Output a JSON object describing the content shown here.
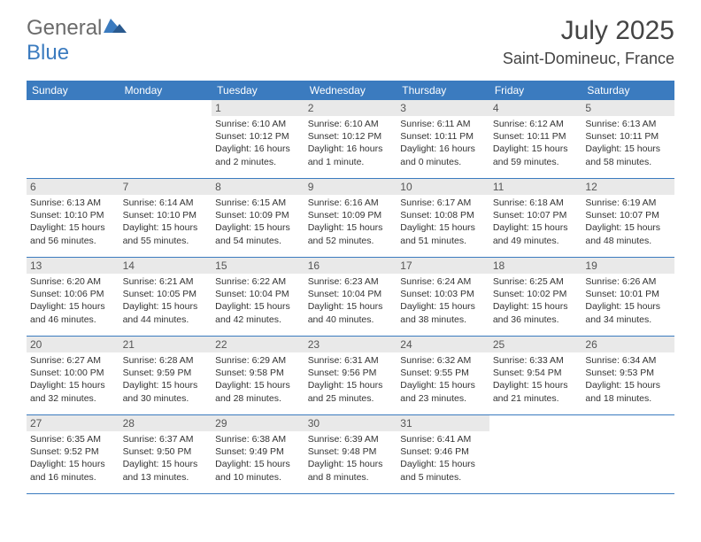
{
  "logo": {
    "text1": "General",
    "text2": "Blue"
  },
  "title": "July 2025",
  "location": "Saint-Domineuc, France",
  "dayNames": [
    "Sunday",
    "Monday",
    "Tuesday",
    "Wednesday",
    "Thursday",
    "Friday",
    "Saturday"
  ],
  "colors": {
    "headerBlue": "#3b7bbf",
    "logoGray": "#6b6b6b",
    "background": "#ffffff",
    "dayNumBg": "#e9e9e9",
    "textDark": "#444444",
    "infoText": "#333333"
  },
  "calendar": {
    "startOffset": 2,
    "days": [
      {
        "n": 1,
        "sr": "6:10 AM",
        "ss": "10:12 PM",
        "dl": "16 hours and 2 minutes."
      },
      {
        "n": 2,
        "sr": "6:10 AM",
        "ss": "10:12 PM",
        "dl": "16 hours and 1 minute."
      },
      {
        "n": 3,
        "sr": "6:11 AM",
        "ss": "10:11 PM",
        "dl": "16 hours and 0 minutes."
      },
      {
        "n": 4,
        "sr": "6:12 AM",
        "ss": "10:11 PM",
        "dl": "15 hours and 59 minutes."
      },
      {
        "n": 5,
        "sr": "6:13 AM",
        "ss": "10:11 PM",
        "dl": "15 hours and 58 minutes."
      },
      {
        "n": 6,
        "sr": "6:13 AM",
        "ss": "10:10 PM",
        "dl": "15 hours and 56 minutes."
      },
      {
        "n": 7,
        "sr": "6:14 AM",
        "ss": "10:10 PM",
        "dl": "15 hours and 55 minutes."
      },
      {
        "n": 8,
        "sr": "6:15 AM",
        "ss": "10:09 PM",
        "dl": "15 hours and 54 minutes."
      },
      {
        "n": 9,
        "sr": "6:16 AM",
        "ss": "10:09 PM",
        "dl": "15 hours and 52 minutes."
      },
      {
        "n": 10,
        "sr": "6:17 AM",
        "ss": "10:08 PM",
        "dl": "15 hours and 51 minutes."
      },
      {
        "n": 11,
        "sr": "6:18 AM",
        "ss": "10:07 PM",
        "dl": "15 hours and 49 minutes."
      },
      {
        "n": 12,
        "sr": "6:19 AM",
        "ss": "10:07 PM",
        "dl": "15 hours and 48 minutes."
      },
      {
        "n": 13,
        "sr": "6:20 AM",
        "ss": "10:06 PM",
        "dl": "15 hours and 46 minutes."
      },
      {
        "n": 14,
        "sr": "6:21 AM",
        "ss": "10:05 PM",
        "dl": "15 hours and 44 minutes."
      },
      {
        "n": 15,
        "sr": "6:22 AM",
        "ss": "10:04 PM",
        "dl": "15 hours and 42 minutes."
      },
      {
        "n": 16,
        "sr": "6:23 AM",
        "ss": "10:04 PM",
        "dl": "15 hours and 40 minutes."
      },
      {
        "n": 17,
        "sr": "6:24 AM",
        "ss": "10:03 PM",
        "dl": "15 hours and 38 minutes."
      },
      {
        "n": 18,
        "sr": "6:25 AM",
        "ss": "10:02 PM",
        "dl": "15 hours and 36 minutes."
      },
      {
        "n": 19,
        "sr": "6:26 AM",
        "ss": "10:01 PM",
        "dl": "15 hours and 34 minutes."
      },
      {
        "n": 20,
        "sr": "6:27 AM",
        "ss": "10:00 PM",
        "dl": "15 hours and 32 minutes."
      },
      {
        "n": 21,
        "sr": "6:28 AM",
        "ss": "9:59 PM",
        "dl": "15 hours and 30 minutes."
      },
      {
        "n": 22,
        "sr": "6:29 AM",
        "ss": "9:58 PM",
        "dl": "15 hours and 28 minutes."
      },
      {
        "n": 23,
        "sr": "6:31 AM",
        "ss": "9:56 PM",
        "dl": "15 hours and 25 minutes."
      },
      {
        "n": 24,
        "sr": "6:32 AM",
        "ss": "9:55 PM",
        "dl": "15 hours and 23 minutes."
      },
      {
        "n": 25,
        "sr": "6:33 AM",
        "ss": "9:54 PM",
        "dl": "15 hours and 21 minutes."
      },
      {
        "n": 26,
        "sr": "6:34 AM",
        "ss": "9:53 PM",
        "dl": "15 hours and 18 minutes."
      },
      {
        "n": 27,
        "sr": "6:35 AM",
        "ss": "9:52 PM",
        "dl": "15 hours and 16 minutes."
      },
      {
        "n": 28,
        "sr": "6:37 AM",
        "ss": "9:50 PM",
        "dl": "15 hours and 13 minutes."
      },
      {
        "n": 29,
        "sr": "6:38 AM",
        "ss": "9:49 PM",
        "dl": "15 hours and 10 minutes."
      },
      {
        "n": 30,
        "sr": "6:39 AM",
        "ss": "9:48 PM",
        "dl": "15 hours and 8 minutes."
      },
      {
        "n": 31,
        "sr": "6:41 AM",
        "ss": "9:46 PM",
        "dl": "15 hours and 5 minutes."
      }
    ],
    "labels": {
      "sunrise": "Sunrise:",
      "sunset": "Sunset:",
      "daylight": "Daylight:"
    }
  }
}
